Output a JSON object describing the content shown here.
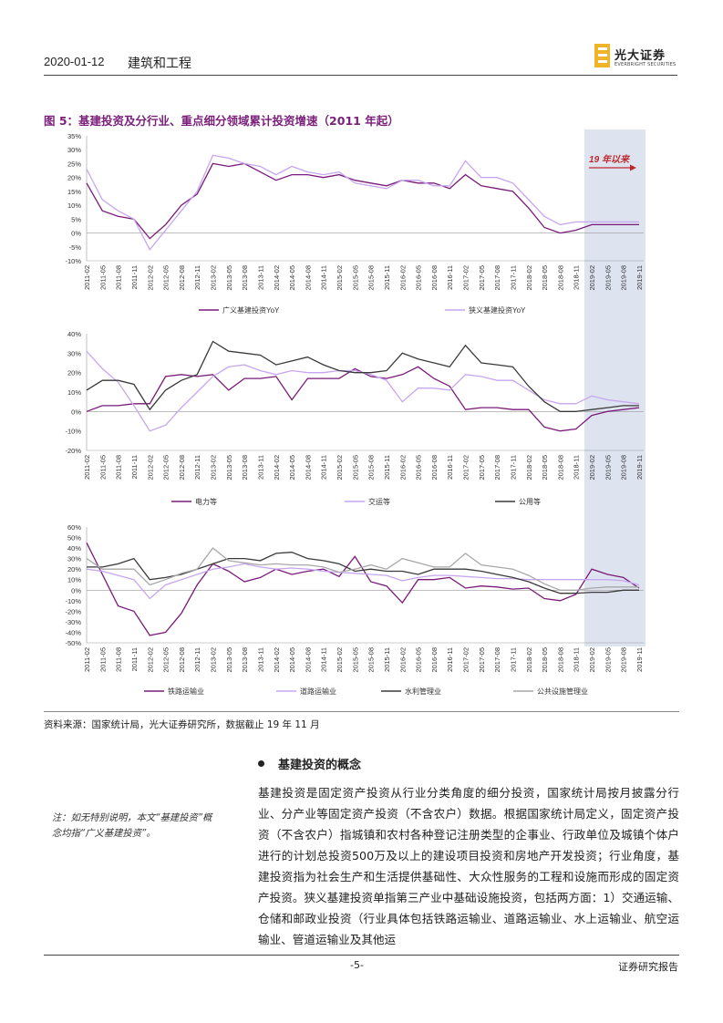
{
  "header": {
    "date": "2020-01-12",
    "industry": "建筑和工程",
    "logo_name": "光大证券",
    "logo_en": "EVERBRIGHT SECURITIES"
  },
  "figure": {
    "title": "图 5：基建投资及分行业、重点细分领域累计投资增速（2011 年起）",
    "annotation": "19 年以来"
  },
  "colors": {
    "purple": "#7a1a7a",
    "light_purple": "#c7a6f0",
    "dark": "#3a3a3a",
    "gray": "#a8a8a8",
    "highlight": "#dde3ef",
    "arrow": "#c0272d"
  },
  "chart_data": [
    {
      "type": "line",
      "x": [
        "2011-02",
        "2011-05",
        "2011-08",
        "2011-11",
        "2012-02",
        "2012-05",
        "2012-08",
        "2012-11",
        "2013-02",
        "2013-05",
        "2013-08",
        "2013-11",
        "2014-02",
        "2014-05",
        "2014-08",
        "2014-11",
        "2015-02",
        "2015-05",
        "2015-08",
        "2015-11",
        "2016-02",
        "2016-05",
        "2016-08",
        "2016-11",
        "2017-02",
        "2017-05",
        "2017-08",
        "2017-11",
        "2018-02",
        "2018-05",
        "2018-08",
        "2018-11",
        "2019-02",
        "2019-05",
        "2019-08",
        "2019-11"
      ],
      "ylim": [
        -10,
        35
      ],
      "yticks": [
        "35%",
        "30%",
        "25%",
        "20%",
        "15%",
        "10%",
        "5%",
        "0%",
        "-5%",
        "-10%"
      ],
      "series": [
        {
          "name": "广义基建投资YoY",
          "color": "#7a1a7a",
          "values": [
            18,
            8,
            6,
            5,
            -2,
            3,
            10,
            14,
            25,
            24,
            25,
            22,
            19,
            21,
            21,
            20,
            21,
            19,
            18,
            17,
            19,
            18,
            18,
            16,
            21,
            17,
            16,
            15,
            9,
            2,
            0,
            1,
            3,
            3,
            3,
            3
          ]
        },
        {
          "name": "狭义基建投资YoY",
          "color": "#c7a6f0",
          "values": [
            23,
            12,
            8,
            5,
            -6,
            1,
            8,
            15,
            28,
            27,
            25,
            24,
            21,
            24,
            22,
            21,
            22,
            18,
            17,
            16,
            19,
            19,
            17,
            17,
            26,
            20,
            20,
            18,
            12,
            6,
            3,
            4,
            4,
            4,
            4,
            4
          ]
        }
      ],
      "legend": "bottom"
    },
    {
      "type": "line",
      "x": [
        "2011-02",
        "2011-05",
        "2011-08",
        "2011-11",
        "2012-02",
        "2012-05",
        "2012-08",
        "2012-11",
        "2013-02",
        "2013-05",
        "2013-08",
        "2013-11",
        "2014-02",
        "2014-05",
        "2014-08",
        "2014-11",
        "2015-02",
        "2015-05",
        "2015-08",
        "2015-11",
        "2016-02",
        "2016-05",
        "2016-08",
        "2016-11",
        "2017-02",
        "2017-05",
        "2017-08",
        "2017-11",
        "2018-02",
        "2018-05",
        "2018-08",
        "2018-11",
        "2019-02",
        "2019-05",
        "2019-08",
        "2019-11"
      ],
      "ylim": [
        -20,
        40
      ],
      "yticks": [
        "40%",
        "30%",
        "20%",
        "10%",
        "0%",
        "-10%",
        "-20%"
      ],
      "series": [
        {
          "name": "电力等",
          "color": "#7a1a7a",
          "values": [
            0,
            3,
            3,
            4,
            4,
            18,
            19,
            18,
            19,
            11,
            17,
            17,
            18,
            6,
            17,
            17,
            17,
            22,
            18,
            17,
            19,
            23,
            17,
            13,
            1,
            2,
            2,
            1,
            1,
            -8,
            -10,
            -9,
            -2,
            0,
            1,
            2
          ]
        },
        {
          "name": "交运等",
          "color": "#c7a6f0",
          "values": [
            31,
            22,
            15,
            3,
            -10,
            -7,
            2,
            10,
            18,
            23,
            24,
            21,
            19,
            21,
            20,
            20,
            21,
            21,
            19,
            16,
            5,
            12,
            12,
            11,
            19,
            18,
            16,
            16,
            11,
            6,
            4,
            4,
            8,
            6,
            5,
            4
          ]
        },
        {
          "name": "公用等",
          "color": "#3a3a3a",
          "values": [
            11,
            16,
            16,
            14,
            1,
            11,
            16,
            19,
            36,
            31,
            30,
            29,
            24,
            26,
            28,
            24,
            21,
            20,
            20,
            21,
            30,
            27,
            25,
            23,
            34,
            25,
            24,
            23,
            13,
            5,
            0,
            0,
            1,
            2,
            3,
            3
          ]
        }
      ],
      "legend": "bottom"
    },
    {
      "type": "line",
      "x": [
        "2011-02",
        "2011-05",
        "2011-08",
        "2011-11",
        "2012-02",
        "2012-05",
        "2012-08",
        "2012-11",
        "2013-02",
        "2013-05",
        "2013-08",
        "2013-11",
        "2014-02",
        "2014-05",
        "2014-08",
        "2014-11",
        "2015-02",
        "2015-05",
        "2015-08",
        "2015-11",
        "2016-02",
        "2016-05",
        "2016-08",
        "2016-11",
        "2017-02",
        "2017-05",
        "2017-08",
        "2017-11",
        "2018-02",
        "2018-05",
        "2018-08",
        "2018-11",
        "2019-02",
        "2019-05",
        "2019-08",
        "2019-11"
      ],
      "ylim": [
        -50,
        60
      ],
      "yticks": [
        "60%",
        "50%",
        "40%",
        "30%",
        "20%",
        "10%",
        "0%",
        "-10%",
        "-20%",
        "-30%",
        "-40%",
        "-50%"
      ],
      "series": [
        {
          "name": "铁路运输业",
          "color": "#7a1a7a",
          "values": [
            45,
            15,
            -15,
            -20,
            -43,
            -40,
            -22,
            5,
            25,
            18,
            8,
            12,
            20,
            15,
            18,
            20,
            13,
            32,
            8,
            4,
            -12,
            10,
            10,
            12,
            2,
            4,
            3,
            1,
            2,
            -8,
            -10,
            -4,
            20,
            15,
            12,
            2
          ]
        },
        {
          "name": "道路运输业",
          "color": "#c7a6f0",
          "values": [
            20,
            18,
            14,
            10,
            -8,
            5,
            10,
            15,
            20,
            22,
            25,
            22,
            20,
            21,
            20,
            18,
            17,
            16,
            15,
            14,
            9,
            12,
            14,
            14,
            13,
            12,
            11,
            11,
            10,
            10,
            10,
            10,
            10,
            10,
            9,
            5
          ]
        },
        {
          "name": "水利管理业",
          "color": "#3a3a3a",
          "values": [
            22,
            22,
            25,
            30,
            10,
            12,
            15,
            20,
            25,
            30,
            30,
            28,
            35,
            36,
            30,
            28,
            25,
            18,
            20,
            18,
            18,
            15,
            20,
            20,
            20,
            18,
            15,
            12,
            8,
            2,
            -3,
            -3,
            -2,
            -2,
            0,
            0
          ]
        },
        {
          "name": "公共设施管理业",
          "color": "#a8a8a8",
          "values": [
            30,
            20,
            20,
            20,
            5,
            10,
            16,
            20,
            40,
            28,
            26,
            24,
            25,
            24,
            24,
            22,
            17,
            20,
            24,
            20,
            30,
            26,
            22,
            22,
            35,
            24,
            22,
            20,
            14,
            6,
            0,
            0,
            2,
            3,
            3,
            3
          ]
        }
      ],
      "legend": "bottom"
    }
  ],
  "source": "资料来源：国家统计局，光大证券研究所，数据截止 19 年 11 月",
  "section": {
    "title": "基建投资的概念",
    "body": "基建投资是固定资产投资从行业分类角度的细分投资，国家统计局按月披露分行业、分产业等固定资产投资（不含农户）数据。根据国家统计局定义，固定资产投资（不含农户）指城镇和农村各种登记注册类型的企事业、行政单位及城镇个体户进行的计划总投资500万及以上的建设项目投资和房地产开发投资；行业角度，基建投资指为社会生产和生活提供基础性、大众性服务的工程和设施而形成的固定资产投资。狭义基建投资单指第三产业中基础设施投资，包括两方面：1）交通运输、仓储和邮政业投资（行业具体包括铁路运输业、道路运输业、水上运输业、航空运输业、管道运输业及其他运"
  },
  "side_note": "注：如无特别说明，本文“基建投资”概念均指“广义基建投资”。",
  "footer": {
    "page": "-5-",
    "right": "证券研究报告"
  }
}
